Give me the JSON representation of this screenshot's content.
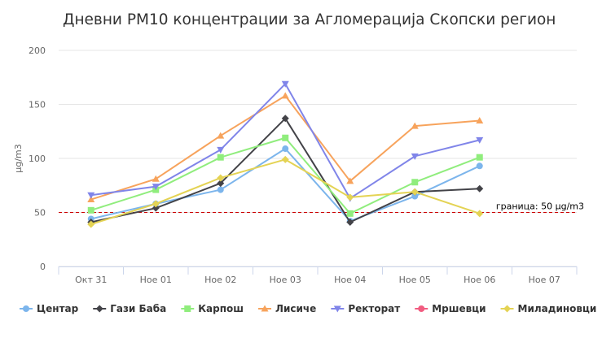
{
  "chart_data": {
    "type": "line",
    "title": "Дневни PM10 концентрации за Агломерација Скопски регион",
    "ylabel": "μg/m3",
    "xlabel": "",
    "categories": [
      "Окт 31",
      "Ное 01",
      "Ное 02",
      "Ное 03",
      "Ное 04",
      "Ное 05",
      "Ное 06",
      "Ное 07"
    ],
    "ylim": [
      0,
      200
    ],
    "yticks": [
      0,
      50,
      100,
      150,
      200
    ],
    "grid": true,
    "legend_position": "bottom",
    "limit_line": {
      "value": 50,
      "label": "граница: 50 μg/m3",
      "color": "#cc0000"
    },
    "series": [
      {
        "name": "Центар",
        "color": "#7cb5ec",
        "marker": "circle",
        "values": [
          44,
          58,
          71,
          109,
          42,
          65,
          93,
          null
        ]
      },
      {
        "name": "Гази Баба",
        "color": "#434348",
        "marker": "diamond",
        "values": [
          41,
          54,
          77,
          137,
          41,
          69,
          72,
          null
        ]
      },
      {
        "name": "Карпош",
        "color": "#90ed7d",
        "marker": "square",
        "values": [
          52,
          71,
          101,
          119,
          49,
          78,
          101,
          null
        ]
      },
      {
        "name": "Лисиче",
        "color": "#f7a35c",
        "marker": "triangle",
        "values": [
          62,
          81,
          121,
          158,
          79,
          130,
          135,
          null
        ]
      },
      {
        "name": "Ректорат",
        "color": "#8085e9",
        "marker": "triangle-down",
        "values": [
          66,
          74,
          108,
          169,
          63,
          102,
          117,
          null
        ]
      },
      {
        "name": "Мршевци",
        "color": "#f15c80",
        "marker": "circle",
        "values": [
          null,
          null,
          null,
          null,
          null,
          null,
          null,
          null
        ]
      },
      {
        "name": "Миладиновци",
        "color": "#e4d354",
        "marker": "diamond",
        "values": [
          39,
          58,
          82,
          99,
          64,
          69,
          49,
          null
        ]
      }
    ]
  }
}
